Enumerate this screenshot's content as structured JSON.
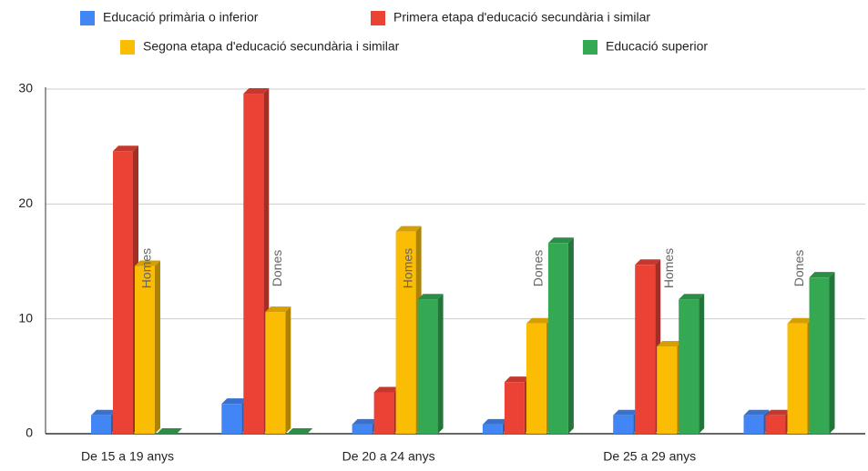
{
  "chart_data": {
    "type": "bar3d",
    "categories": [
      "De 15 a 19 anys",
      null,
      "De 20 a 24 anys",
      null,
      "De 25 a 29 anys",
      null
    ],
    "group_labels": [
      "Homes",
      "Dones",
      "Homes",
      "Dones",
      "Homes",
      "Dones"
    ],
    "series": [
      {
        "name": "Educació primària o inferior",
        "color": "#4285f4",
        "values": [
          1.6,
          2.6,
          0.8,
          0.8,
          1.6,
          1.6
        ]
      },
      {
        "name": "Primera etapa d'educació secundària i similar",
        "color": "#ea4335",
        "values": [
          24.6,
          29.6,
          3.6,
          4.5,
          14.7,
          1.6
        ]
      },
      {
        "name": "Segona etapa d'educació secundària i similar",
        "color": "#fbbc04",
        "values": [
          14.6,
          10.6,
          17.6,
          9.6,
          7.6,
          9.6
        ]
      },
      {
        "name": "Educació superior",
        "color": "#34a853",
        "values": [
          0,
          0,
          11.7,
          16.6,
          11.7,
          13.6
        ]
      }
    ],
    "ylim": [
      0,
      30
    ],
    "yticks": [
      0,
      10,
      20,
      30
    ],
    "grid": true
  }
}
